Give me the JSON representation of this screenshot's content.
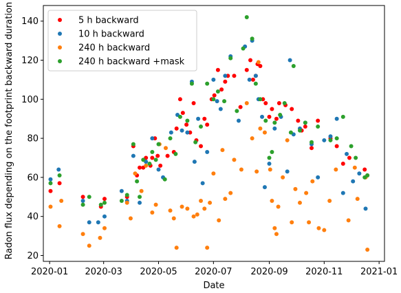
{
  "chart_data": {
    "type": "scatter",
    "title": "",
    "xlabel": "Date",
    "ylabel": "Radon flux depending on the footprint backward duration",
    "xlim": [
      "2019-12-25",
      "2021-01-07"
    ],
    "ylim": [
      17,
      148
    ],
    "x_ticks": [
      "2020-01-01",
      "2020-03-01",
      "2020-05-01",
      "2020-07-01",
      "2020-09-01",
      "2020-11-01",
      "2021-01-01"
    ],
    "x_tick_labels": [
      "2020-01",
      "2020-03",
      "2020-05",
      "2020-07",
      "2020-09",
      "2020-11",
      "2021-01"
    ],
    "y_ticks": [
      20,
      40,
      60,
      80,
      100,
      120,
      140
    ],
    "y_tick_labels": [
      "20",
      "40",
      "60",
      "80",
      "100",
      "120",
      "140"
    ],
    "grid": false,
    "legend_position": "top-left",
    "series": [
      {
        "name": "5 h backward",
        "color": "#ff0000",
        "points": [
          [
            "2020-01-02",
            53
          ],
          [
            "2020-01-12",
            57
          ],
          [
            "2020-02-07",
            50
          ],
          [
            "2020-02-27",
            45
          ],
          [
            "2020-03-02",
            49
          ],
          [
            "2020-03-27",
            50
          ],
          [
            "2020-04-03",
            76
          ],
          [
            "2020-04-07",
            61
          ],
          [
            "2020-04-10",
            65
          ],
          [
            "2020-04-14",
            65
          ],
          [
            "2020-04-17",
            70
          ],
          [
            "2020-04-22",
            66
          ],
          [
            "2020-04-24",
            70
          ],
          [
            "2020-04-27",
            80
          ],
          [
            "2020-04-30",
            71
          ],
          [
            "2020-05-03",
            66
          ],
          [
            "2020-05-11",
            71
          ],
          [
            "2020-05-18",
            73
          ],
          [
            "2020-05-21",
            85
          ],
          [
            "2020-05-25",
            100
          ],
          [
            "2020-05-28",
            93
          ],
          [
            "2020-06-01",
            87
          ],
          [
            "2020-06-05",
            83
          ],
          [
            "2020-06-09",
            98
          ],
          [
            "2020-06-12",
            79
          ],
          [
            "2020-06-17",
            76
          ],
          [
            "2020-06-21",
            90
          ],
          [
            "2020-06-24",
            87
          ],
          [
            "2020-06-29",
            100
          ],
          [
            "2020-07-02",
            102
          ],
          [
            "2020-07-06",
            115
          ],
          [
            "2020-07-10",
            105
          ],
          [
            "2020-07-14",
            109
          ],
          [
            "2020-07-17",
            112
          ],
          [
            "2020-07-24",
            112
          ],
          [
            "2020-07-31",
            96
          ],
          [
            "2020-08-07",
            115
          ],
          [
            "2020-08-11",
            120
          ],
          [
            "2020-08-14",
            110
          ],
          [
            "2020-08-17",
            112
          ],
          [
            "2020-08-19",
            118
          ],
          [
            "2020-08-22",
            117
          ],
          [
            "2020-08-25",
            100
          ],
          [
            "2020-08-28",
            98
          ],
          [
            "2020-09-01",
            91
          ],
          [
            "2020-09-04",
            95
          ],
          [
            "2020-09-09",
            90
          ],
          [
            "2020-09-12",
            98
          ],
          [
            "2020-09-19",
            97
          ],
          [
            "2020-09-26",
            95
          ],
          [
            "2020-10-03",
            89
          ],
          [
            "2020-10-07",
            84
          ],
          [
            "2020-10-11",
            86
          ],
          [
            "2020-10-18",
            75
          ],
          [
            "2020-10-25",
            89
          ],
          [
            "2020-11-08",
            80
          ],
          [
            "2020-11-15",
            76
          ],
          [
            "2020-11-22",
            67
          ],
          [
            "2020-11-29",
            70
          ],
          [
            "2020-12-16",
            64
          ],
          [
            "2020-12-19",
            61
          ]
        ]
      },
      {
        "name": "10 h backward",
        "color": "#1f77b4",
        "points": [
          [
            "2020-01-02",
            59
          ],
          [
            "2020-01-11",
            64
          ],
          [
            "2020-02-07",
            48
          ],
          [
            "2020-02-14",
            37
          ],
          [
            "2020-02-24",
            37
          ],
          [
            "2020-03-02",
            40
          ],
          [
            "2020-03-21",
            53
          ],
          [
            "2020-03-27",
            48
          ],
          [
            "2020-04-03",
            71
          ],
          [
            "2020-04-10",
            47
          ],
          [
            "2020-04-17",
            68
          ],
          [
            "2020-04-24",
            80
          ],
          [
            "2020-05-01",
            64
          ],
          [
            "2020-05-06",
            60
          ],
          [
            "2020-05-15",
            83
          ],
          [
            "2020-05-22",
            92
          ],
          [
            "2020-05-27",
            84
          ],
          [
            "2020-06-02",
            83
          ],
          [
            "2020-06-07",
            109
          ],
          [
            "2020-06-10",
            68
          ],
          [
            "2020-06-14",
            90
          ],
          [
            "2020-06-19",
            57
          ],
          [
            "2020-06-24",
            73
          ],
          [
            "2020-07-01",
            110
          ],
          [
            "2020-07-05",
            99
          ],
          [
            "2020-07-09",
            95
          ],
          [
            "2020-07-14",
            112
          ],
          [
            "2020-07-20",
            122
          ],
          [
            "2020-07-29",
            89
          ],
          [
            "2020-08-05",
            127
          ],
          [
            "2020-08-10",
            110
          ],
          [
            "2020-08-13",
            130
          ],
          [
            "2020-08-17",
            112
          ],
          [
            "2020-08-20",
            100
          ],
          [
            "2020-08-24",
            91
          ],
          [
            "2020-08-27",
            55
          ],
          [
            "2020-09-01",
            67
          ],
          [
            "2020-09-07",
            85
          ],
          [
            "2020-09-14",
            91
          ],
          [
            "2020-09-21",
            63
          ],
          [
            "2020-09-24",
            120
          ],
          [
            "2020-09-28",
            82
          ],
          [
            "2020-10-05",
            85
          ],
          [
            "2020-10-11",
            88
          ],
          [
            "2020-10-18",
            77
          ],
          [
            "2020-10-25",
            60
          ],
          [
            "2020-11-01",
            79
          ],
          [
            "2020-11-08",
            81
          ],
          [
            "2020-11-15",
            90
          ],
          [
            "2020-11-22",
            52
          ],
          [
            "2020-11-26",
            72
          ],
          [
            "2020-12-03",
            58
          ],
          [
            "2020-12-10",
            62
          ],
          [
            "2020-12-17",
            44
          ]
        ]
      },
      {
        "name": "240 h backward",
        "color": "#ff7f0e",
        "points": [
          [
            "2020-01-02",
            45
          ],
          [
            "2020-01-12",
            35
          ],
          [
            "2020-01-14",
            48
          ],
          [
            "2020-02-07",
            31
          ],
          [
            "2020-02-14",
            25
          ],
          [
            "2020-02-26",
            29
          ],
          [
            "2020-03-02",
            34
          ],
          [
            "2020-03-27",
            47
          ],
          [
            "2020-03-31",
            39
          ],
          [
            "2020-04-05",
            62
          ],
          [
            "2020-04-12",
            53
          ],
          [
            "2020-04-17",
            66
          ],
          [
            "2020-04-24",
            42
          ],
          [
            "2020-04-28",
            46
          ],
          [
            "2020-05-02",
            77
          ],
          [
            "2020-05-09",
            75
          ],
          [
            "2020-05-14",
            43
          ],
          [
            "2020-05-18",
            39
          ],
          [
            "2020-05-21",
            24
          ],
          [
            "2020-05-27",
            45
          ],
          [
            "2020-06-02",
            44
          ],
          [
            "2020-06-09",
            40
          ],
          [
            "2020-06-13",
            41
          ],
          [
            "2020-06-17",
            48
          ],
          [
            "2020-06-21",
            44
          ],
          [
            "2020-06-24",
            24
          ],
          [
            "2020-06-27",
            47
          ],
          [
            "2020-07-01",
            62
          ],
          [
            "2020-07-07",
            38
          ],
          [
            "2020-07-11",
            74
          ],
          [
            "2020-07-14",
            49
          ],
          [
            "2020-07-20",
            52
          ],
          [
            "2020-07-24",
            69
          ],
          [
            "2020-08-01",
            64
          ],
          [
            "2020-08-07",
            98
          ],
          [
            "2020-08-13",
            80
          ],
          [
            "2020-08-18",
            63
          ],
          [
            "2020-08-20",
            119
          ],
          [
            "2020-08-22",
            85
          ],
          [
            "2020-08-27",
            83
          ],
          [
            "2020-09-02",
            64
          ],
          [
            "2020-09-04",
            48
          ],
          [
            "2020-09-07",
            34
          ],
          [
            "2020-09-09",
            31
          ],
          [
            "2020-09-11",
            45
          ],
          [
            "2020-09-16",
            60
          ],
          [
            "2020-09-21",
            79
          ],
          [
            "2020-09-26",
            37
          ],
          [
            "2020-09-30",
            54
          ],
          [
            "2020-10-05",
            47
          ],
          [
            "2020-10-12",
            52
          ],
          [
            "2020-10-15",
            37
          ],
          [
            "2020-10-19",
            58
          ],
          [
            "2020-10-26",
            34
          ],
          [
            "2020-11-01",
            33
          ],
          [
            "2020-11-07",
            48
          ],
          [
            "2020-11-14",
            64
          ],
          [
            "2020-11-28",
            38
          ],
          [
            "2020-12-05",
            65
          ],
          [
            "2020-12-08",
            49
          ],
          [
            "2020-12-17",
            60
          ],
          [
            "2020-12-19",
            23
          ]
        ]
      },
      {
        "name": "240 h backward +mask",
        "color": "#2ca02c",
        "points": [
          [
            "2020-01-02",
            57
          ],
          [
            "2020-01-12",
            61
          ],
          [
            "2020-02-07",
            46
          ],
          [
            "2020-02-14",
            50
          ],
          [
            "2020-02-27",
            46
          ],
          [
            "2020-03-02",
            47
          ],
          [
            "2020-03-21",
            48
          ],
          [
            "2020-03-27",
            51
          ],
          [
            "2020-04-03",
            77
          ],
          [
            "2020-04-07",
            58
          ],
          [
            "2020-04-10",
            50
          ],
          [
            "2020-04-14",
            69
          ],
          [
            "2020-04-21",
            67
          ],
          [
            "2020-04-24",
            73
          ],
          [
            "2020-04-28",
            69
          ],
          [
            "2020-05-01",
            77
          ],
          [
            "2020-05-08",
            59
          ],
          [
            "2020-05-14",
            80
          ],
          [
            "2020-05-20",
            72
          ],
          [
            "2020-05-25",
            91
          ],
          [
            "2020-06-02",
            89
          ],
          [
            "2020-06-07",
            108
          ],
          [
            "2020-06-11",
            78
          ],
          [
            "2020-06-17",
            86
          ],
          [
            "2020-06-24",
            108
          ],
          [
            "2020-07-01",
            100
          ],
          [
            "2020-07-06",
            104
          ],
          [
            "2020-07-13",
            99
          ],
          [
            "2020-07-20",
            121
          ],
          [
            "2020-07-27",
            94
          ],
          [
            "2020-08-03",
            126
          ],
          [
            "2020-08-07",
            142
          ],
          [
            "2020-08-13",
            131
          ],
          [
            "2020-08-17",
            108
          ],
          [
            "2020-08-22",
            100
          ],
          [
            "2020-08-28",
            89
          ],
          [
            "2020-09-01",
            70
          ],
          [
            "2020-09-04",
            73
          ],
          [
            "2020-09-07",
            88
          ],
          [
            "2020-09-13",
            92
          ],
          [
            "2020-09-18",
            98
          ],
          [
            "2020-09-25",
            83
          ],
          [
            "2020-09-28",
            117
          ],
          [
            "2020-10-05",
            84
          ],
          [
            "2020-10-11",
            88
          ],
          [
            "2020-10-18",
            78
          ],
          [
            "2020-10-25",
            86
          ],
          [
            "2020-11-08",
            79
          ],
          [
            "2020-11-15",
            80
          ],
          [
            "2020-11-22",
            91
          ],
          [
            "2020-12-01",
            76
          ],
          [
            "2020-12-06",
            70
          ],
          [
            "2020-12-16",
            60
          ],
          [
            "2020-12-19",
            61
          ]
        ]
      }
    ]
  }
}
